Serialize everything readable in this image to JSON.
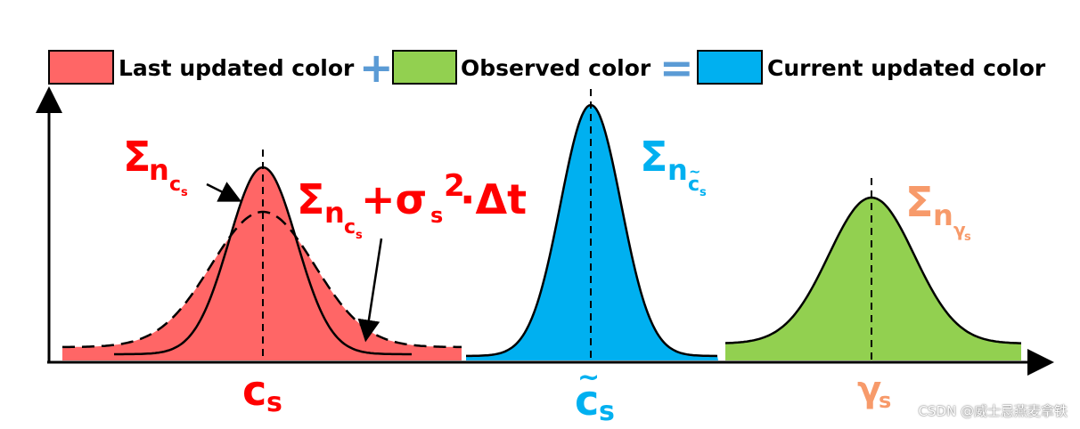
{
  "legend": {
    "last_label": "Last updated  color",
    "observed_label": "Observed  color",
    "current_label": "Current updated  color",
    "plus_symbol": "+",
    "equals_symbol": "=",
    "colors": {
      "last": "#ff6666",
      "observed": "#92d050",
      "current": "#00b0f0",
      "operator": "#5b9bd5"
    }
  },
  "labels": {
    "sigma": "Σ",
    "n": "n",
    "c": "c",
    "s": "s",
    "gamma": "γ",
    "tilde": "~",
    "plus_sigma": "+σ",
    "two": "2",
    "dt": "·Δt"
  },
  "label_colors": {
    "red": "#ff0000",
    "blue": "#00b0f0",
    "orange": "#f79a6a"
  },
  "watermark": "CSDN @威士忌燕麦拿铁"
}
